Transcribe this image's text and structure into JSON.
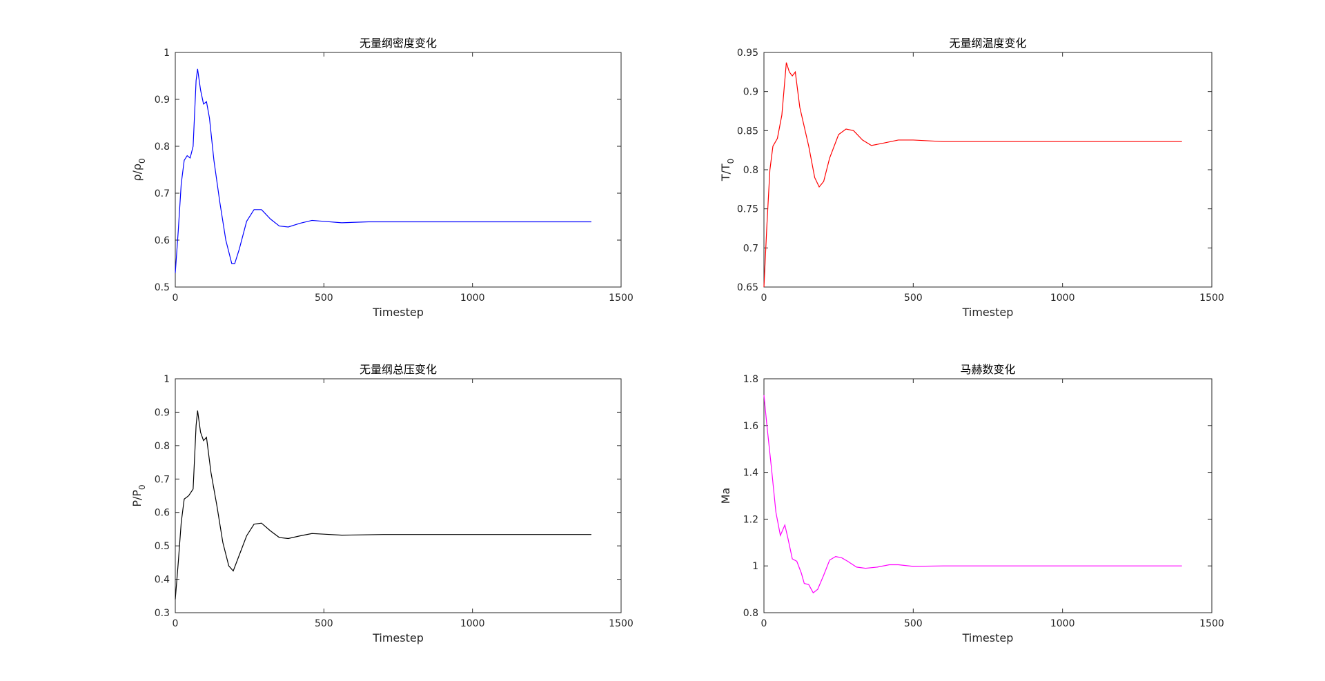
{
  "chart_data": [
    {
      "type": "line",
      "title": "无量纲密度变化",
      "xlabel": "Timestep",
      "ylabel": "ρ/ρ",
      "ylabel_sub": "0",
      "color": "#0000ff",
      "x": [
        0,
        10,
        20,
        30,
        40,
        50,
        60,
        70,
        75,
        85,
        95,
        105,
        115,
        130,
        150,
        170,
        190,
        200,
        215,
        240,
        265,
        290,
        320,
        350,
        380,
        420,
        460,
        500,
        560,
        650,
        800,
        1000,
        1200,
        1400
      ],
      "values": [
        0.53,
        0.62,
        0.72,
        0.77,
        0.78,
        0.775,
        0.8,
        0.94,
        0.965,
        0.92,
        0.89,
        0.895,
        0.86,
        0.77,
        0.68,
        0.6,
        0.55,
        0.55,
        0.58,
        0.64,
        0.665,
        0.665,
        0.645,
        0.63,
        0.628,
        0.636,
        0.642,
        0.64,
        0.637,
        0.639,
        0.639,
        0.639,
        0.639,
        0.639
      ],
      "xlim": [
        0,
        1500
      ],
      "xticks": [
        0,
        500,
        1000,
        1500
      ],
      "ylim": [
        0.5,
        1
      ],
      "yticks": [
        0.5,
        0.6,
        0.7,
        0.8,
        0.9,
        1
      ]
    },
    {
      "type": "line",
      "title": "无量纲温度变化",
      "xlabel": "Timestep",
      "ylabel": "T/T",
      "ylabel_sub": "0",
      "color": "#ff0000",
      "x": [
        0,
        10,
        20,
        30,
        45,
        60,
        75,
        85,
        95,
        105,
        120,
        150,
        170,
        185,
        200,
        220,
        250,
        275,
        300,
        330,
        360,
        400,
        450,
        500,
        600,
        800,
        1000,
        1400
      ],
      "values": [
        0.65,
        0.73,
        0.8,
        0.83,
        0.84,
        0.87,
        0.937,
        0.925,
        0.92,
        0.925,
        0.88,
        0.83,
        0.79,
        0.778,
        0.785,
        0.815,
        0.845,
        0.852,
        0.85,
        0.838,
        0.831,
        0.834,
        0.838,
        0.838,
        0.836,
        0.836,
        0.836,
        0.836
      ],
      "xlim": [
        0,
        1500
      ],
      "xticks": [
        0,
        500,
        1000,
        1500
      ],
      "ylim": [
        0.65,
        0.95
      ],
      "yticks": [
        0.65,
        0.7,
        0.75,
        0.8,
        0.85,
        0.9,
        0.95
      ]
    },
    {
      "type": "line",
      "title": "无量纲总压变化",
      "xlabel": "Timestep",
      "ylabel": "P/P",
      "ylabel_sub": "0",
      "color": "#000000",
      "x": [
        0,
        10,
        20,
        30,
        45,
        60,
        70,
        75,
        85,
        95,
        105,
        120,
        140,
        160,
        180,
        195,
        210,
        240,
        265,
        290,
        320,
        350,
        380,
        420,
        460,
        500,
        560,
        700,
        1000,
        1400
      ],
      "values": [
        0.34,
        0.45,
        0.57,
        0.64,
        0.65,
        0.67,
        0.86,
        0.905,
        0.84,
        0.815,
        0.825,
        0.72,
        0.62,
        0.51,
        0.44,
        0.425,
        0.46,
        0.53,
        0.565,
        0.568,
        0.545,
        0.525,
        0.522,
        0.53,
        0.537,
        0.535,
        0.532,
        0.534,
        0.534,
        0.534
      ],
      "xlim": [
        0,
        1500
      ],
      "xticks": [
        0,
        500,
        1000,
        1500
      ],
      "ylim": [
        0.3,
        1
      ],
      "yticks": [
        0.3,
        0.4,
        0.5,
        0.6,
        0.7,
        0.8,
        0.9,
        1
      ]
    },
    {
      "type": "line",
      "title": "马赫数变化",
      "xlabel": "Timestep",
      "ylabel": "Ma",
      "color": "#ff00ff",
      "x": [
        0,
        10,
        25,
        40,
        55,
        70,
        80,
        95,
        110,
        125,
        135,
        150,
        165,
        180,
        200,
        220,
        240,
        260,
        280,
        310,
        340,
        380,
        420,
        450,
        500,
        600,
        800,
        1400
      ],
      "values": [
        1.73,
        1.6,
        1.42,
        1.23,
        1.13,
        1.175,
        1.12,
        1.03,
        1.02,
        0.97,
        0.925,
        0.92,
        0.885,
        0.9,
        0.96,
        1.025,
        1.04,
        1.035,
        1.02,
        0.995,
        0.99,
        0.995,
        1.005,
        1.005,
        0.998,
        1.0,
        1.0,
        1.0
      ],
      "xlim": [
        0,
        1500
      ],
      "xticks": [
        0,
        500,
        1000,
        1500
      ],
      "ylim": [
        0.8,
        1.8
      ],
      "yticks": [
        0.8,
        1,
        1.2,
        1.4,
        1.6,
        1.8
      ]
    }
  ]
}
